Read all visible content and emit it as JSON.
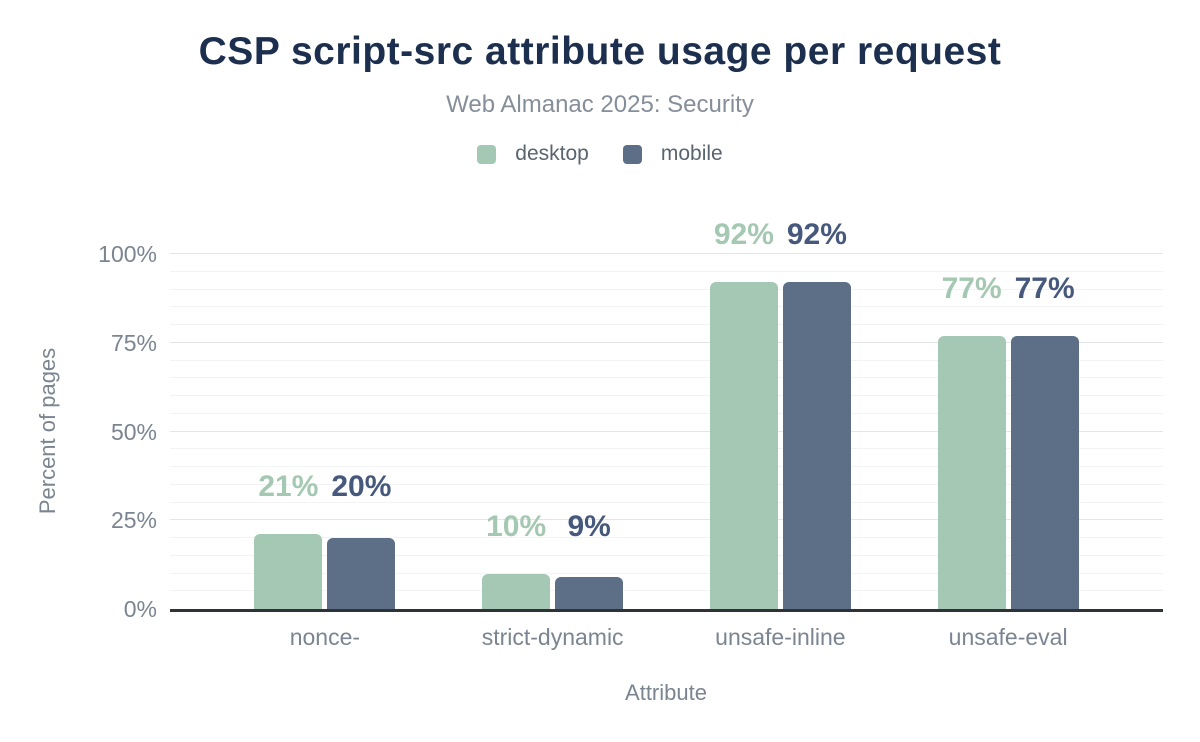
{
  "chart_data": {
    "type": "bar",
    "title": "CSP script-src attribute usage per request",
    "subtitle": "Web Almanac 2025: Security",
    "xlabel": "Attribute",
    "ylabel": "Percent of pages",
    "categories": [
      "nonce-",
      "strict-dynamic",
      "unsafe-inline",
      "unsafe-eval"
    ],
    "series": [
      {
        "name": "desktop",
        "color": "#a4c8b4",
        "label_color": "#a4c8b2",
        "values": [
          21,
          10,
          92,
          77
        ],
        "labels": [
          "21%",
          "10%",
          "92%",
          "77%"
        ]
      },
      {
        "name": "mobile",
        "color": "#5d6e87",
        "label_color": "#46597c",
        "values": [
          20,
          9,
          92,
          77
        ],
        "labels": [
          "20%",
          "9%",
          "92%",
          "77%"
        ]
      }
    ],
    "ylim": [
      0,
      100
    ],
    "yticks": [
      0,
      25,
      50,
      75,
      100
    ],
    "ytick_labels": [
      "0%",
      "25%",
      "50%",
      "75%",
      "100%"
    ],
    "minor_grid_step_pct": 5,
    "major_grid_step_pct": 25,
    "grid": true,
    "legend_position": "top",
    "value_suffix": "%"
  },
  "colors": {
    "title": "#1d2f4f",
    "subtitle": "#858e99",
    "legend_text": "#5a646f",
    "axis_text": "#7b8591",
    "axis_line": "#2f3337",
    "grid_minor": "#f2f3f5",
    "grid_major": "#e3e5e9",
    "background": "#ffffff"
  }
}
